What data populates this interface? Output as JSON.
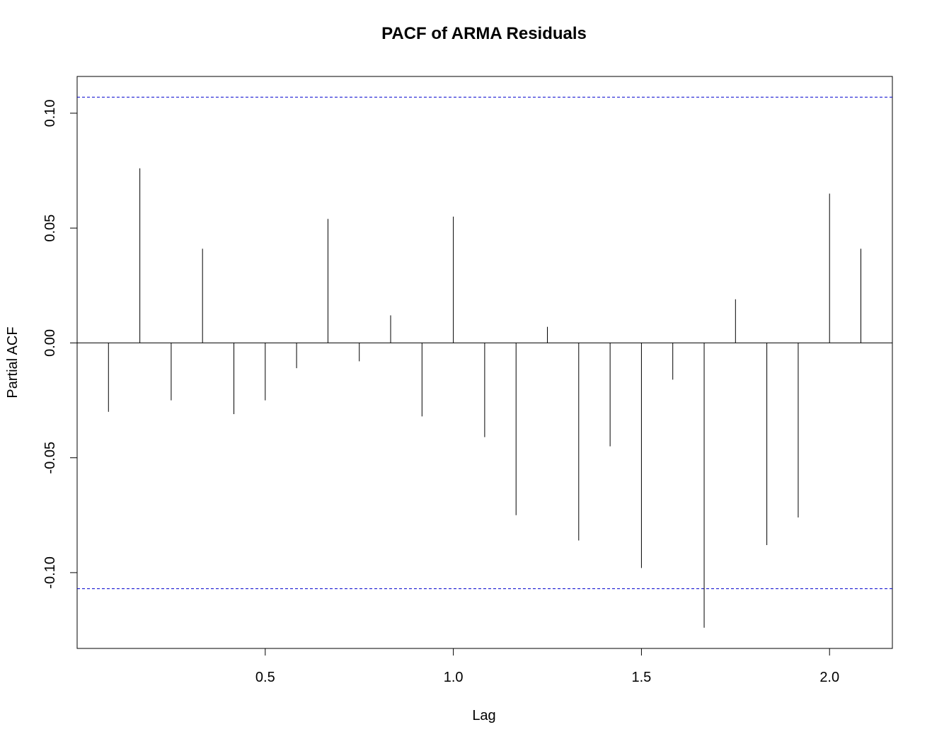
{
  "chart_data": {
    "type": "bar",
    "title": "PACF of ARMA Residuals",
    "xlabel": "Lag",
    "ylabel": "Partial ACF",
    "xlim": [
      0.0,
      2.167
    ],
    "ylim": [
      -0.133,
      0.116
    ],
    "x_ticks": [
      {
        "value": 0.5,
        "label": "0.5"
      },
      {
        "value": 1.0,
        "label": "1.0"
      },
      {
        "value": 1.5,
        "label": "1.5"
      },
      {
        "value": 2.0,
        "label": "2.0"
      }
    ],
    "y_ticks": [
      {
        "value": -0.1,
        "label": "-0.10"
      },
      {
        "value": -0.05,
        "label": "-0.05"
      },
      {
        "value": 0.0,
        "label": "0.00"
      },
      {
        "value": 0.05,
        "label": "0.05"
      },
      {
        "value": 0.1,
        "label": "0.10"
      }
    ],
    "confidence_bounds": [
      0.107,
      -0.107
    ],
    "series": [
      {
        "x": [
          0.0833,
          0.1667,
          0.25,
          0.3333,
          0.4167,
          0.5,
          0.5833,
          0.6667,
          0.75,
          0.8333,
          0.9167,
          1.0,
          1.0833,
          1.1667,
          1.25,
          1.3333,
          1.4167,
          1.5,
          1.5833,
          1.6667,
          1.75,
          1.8333,
          1.9167,
          2.0,
          2.0833
        ],
        "values": [
          -0.03,
          0.076,
          -0.025,
          0.041,
          -0.031,
          -0.025,
          -0.011,
          0.054,
          -0.008,
          0.012,
          -0.032,
          0.055,
          -0.041,
          -0.075,
          0.007,
          -0.086,
          -0.045,
          -0.098,
          -0.016,
          -0.124,
          0.019,
          -0.088,
          -0.076,
          0.065,
          0.041
        ]
      }
    ],
    "colors": {
      "spike": "#000000",
      "bounds": "#0000cd",
      "frame": "#000000"
    },
    "grid": false
  }
}
